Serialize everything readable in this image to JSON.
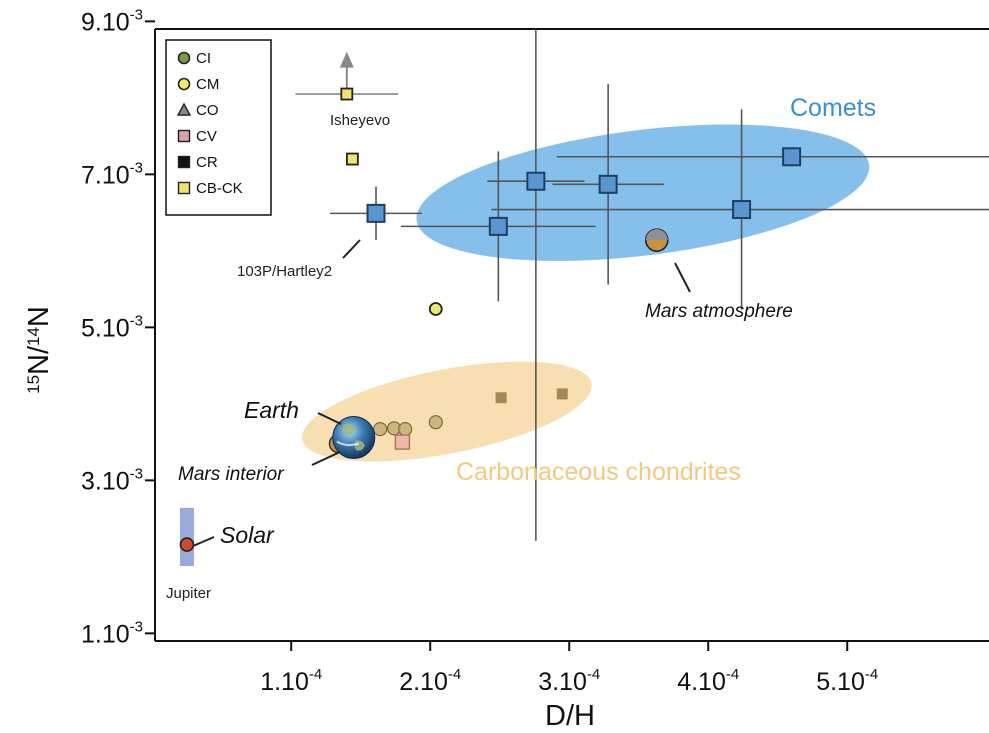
{
  "chart_data": {
    "type": "scatter",
    "xlabel": "D/H",
    "ylabel_main": "N/",
    "ylabel_sup1": "15",
    "ylabel_sup2": "14",
    "ylabel_tail": "N",
    "xlim": [
      1.2e-05,
      0.000612
    ],
    "ylim": [
      0.001,
      0.009
    ],
    "x_ticks": [
      {
        "value": 0.00011,
        "mant": "1.10",
        "exp": "-4"
      },
      {
        "value": 0.00021,
        "mant": "2.10",
        "exp": "-4"
      },
      {
        "value": 0.00031,
        "mant": "3.10",
        "exp": "-4"
      },
      {
        "value": 0.00041,
        "mant": "4.10",
        "exp": "-4"
      },
      {
        "value": 0.00051,
        "mant": "5.10",
        "exp": "-4"
      }
    ],
    "y_ticks": [
      {
        "value": 0.0011,
        "mant": "1.10",
        "exp": "-3"
      },
      {
        "value": 0.0031,
        "mant": "3.10",
        "exp": "-3"
      },
      {
        "value": 0.0051,
        "mant": "5.10",
        "exp": "-3"
      },
      {
        "value": 0.0071,
        "mant": "7.10",
        "exp": "-3"
      },
      {
        "value": 0.0091,
        "mant": "9.10",
        "exp": "-3"
      }
    ],
    "colors": {
      "CI": "#7a9a4a",
      "CM": "#f0e968",
      "CO": "#888888",
      "CV": "#d9a0a8",
      "CR": "#111111",
      "CB-CK": "#f3e36a",
      "comet": "#5a95cf",
      "comet_region": "#6fb5e8",
      "cc_region": "#f6d9a3",
      "cc_marker": "#a48958",
      "mars": "#c8923f",
      "solar": "#cc4a2f",
      "jupiter": "#8da2d8",
      "comets_text": "#3a8fd6",
      "cc_text": "#f3c97d"
    },
    "legend": {
      "placement": "top-left",
      "entries": [
        {
          "label": "CI",
          "marker": "circle",
          "color": "#7a9a4a"
        },
        {
          "label": "CM",
          "marker": "circle",
          "color": "#f0e968"
        },
        {
          "label": "CO",
          "marker": "triangle",
          "color": "#888888"
        },
        {
          "label": "CV",
          "marker": "square",
          "color": "#d9a0a8"
        },
        {
          "label": "CR",
          "marker": "square",
          "color": "#111111"
        },
        {
          "label": "CB-CK",
          "marker": "square",
          "color": "#f3e36a"
        }
      ]
    },
    "regions": [
      {
        "name": "Comets",
        "cx": 0.000363,
        "cy": 0.00686,
        "rx": 0.000164,
        "ry": 0.00082,
        "rotation": -7,
        "color": "#6fb5e8"
      },
      {
        "name": "Carbonaceous chondrites",
        "cx": 0.000222,
        "cy": 0.004,
        "rx": 0.000106,
        "ry": 0.00055,
        "rotation": -11,
        "color": "#f6d9a3"
      }
    ],
    "comets": [
      {
        "x": 0.000171,
        "y": 0.00659,
        "xerr": [
          3.3e-05,
          3.3e-05
        ],
        "yerr": [
          0.00035,
          0.00035
        ],
        "label": "103P/Hartley2"
      },
      {
        "x": 0.000259,
        "y": 0.00642,
        "xerr": [
          7e-05,
          7e-05
        ],
        "yerr": [
          0.00098,
          0.00098
        ]
      },
      {
        "x": 0.000286,
        "y": 0.00701,
        "xerr": [
          3.5e-05,
          3.5e-05
        ],
        "yerr": [
          0.0047,
          0.0047
        ]
      },
      {
        "x": 0.000338,
        "y": 0.00697,
        "xerr": [
          4e-05,
          4e-05
        ],
        "yerr": [
          0.00131,
          0.00131
        ]
      },
      {
        "x": 0.000434,
        "y": 0.00664,
        "xerr": [
          0.00018,
          0.00018
        ],
        "yerr": [
          0.00131,
          0.00131
        ]
      },
      {
        "x": 0.00047,
        "y": 0.00733,
        "xerr": [
          0.000169,
          0.000169
        ],
        "yerr": [
          0,
          0
        ]
      }
    ],
    "chondrites": [
      {
        "x": 0.000151,
        "y": 0.00368,
        "type": "CI"
      },
      {
        "x": 0.000162,
        "y": 0.00367,
        "type": "CI"
      },
      {
        "x": 0.000174,
        "y": 0.00377,
        "type": "CI"
      },
      {
        "x": 0.000184,
        "y": 0.00378,
        "type": "CI"
      },
      {
        "x": 0.000192,
        "y": 0.00377,
        "type": "CI"
      },
      {
        "x": 0.000214,
        "y": 0.00386,
        "type": "CI"
      },
      {
        "x": 0.000214,
        "y": 0.00534,
        "type": "CM"
      },
      {
        "x": 0.00019,
        "y": 0.0036,
        "type": "CV"
      },
      {
        "x": 0.000261,
        "y": 0.00418,
        "type": "CR"
      },
      {
        "x": 0.000305,
        "y": 0.00423,
        "type": "CR"
      },
      {
        "x": 0.000154,
        "y": 0.0073,
        "type": "CB-CK"
      },
      {
        "x": 0.00015,
        "y": 0.00815,
        "type": "CB-CK",
        "label": "Isheyevo",
        "xerr": [
          3.7e-05,
          3.7e-05
        ],
        "arrow_y": 0.0086
      }
    ],
    "bodies": [
      {
        "name": "Earth",
        "x": 0.000155,
        "y": 0.00366
      },
      {
        "name": "Mars interior",
        "x": 0.000144,
        "y": 0.00358
      },
      {
        "name": "Mars atmosphere",
        "x": 0.000373,
        "y": 0.00624
      },
      {
        "name": "Solar",
        "x": 3.5e-05,
        "y": 0.00226
      },
      {
        "name": "Jupiter",
        "x": 3.5e-05,
        "y": 0.00236,
        "yerr": [
          0.00038,
          0.00038
        ]
      }
    ],
    "labels": {
      "comets": "Comets",
      "carbonaceous": "Carbonaceous chondrites",
      "earth": "Earth",
      "mars_interior": "Mars interior",
      "mars_atmosphere": "Mars atmosphere",
      "solar": "Solar",
      "jupiter": "Jupiter",
      "isheyevo": "Isheyevo",
      "hartley": "103P/Hartley2"
    }
  }
}
